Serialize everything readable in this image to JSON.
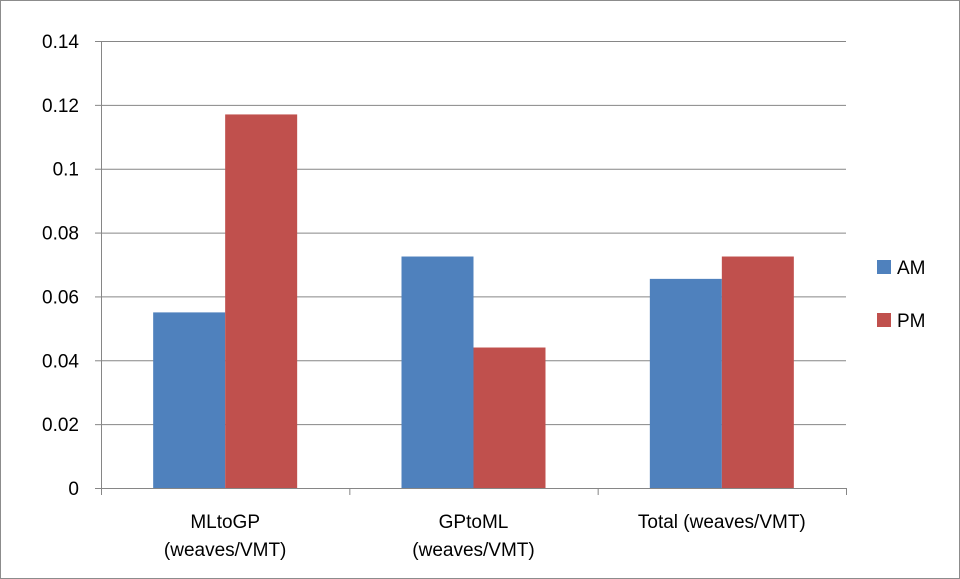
{
  "chart_data": {
    "type": "bar",
    "categories": [
      [
        "MLtoGP",
        "(weaves/VMT)"
      ],
      [
        "GPtoML",
        "(weaves/VMT)"
      ],
      [
        "Total (weaves/VMT)"
      ]
    ],
    "series": [
      {
        "name": "AM",
        "values": [
          0.055,
          0.0725,
          0.0655
        ],
        "color": "#4f81bd"
      },
      {
        "name": "PM",
        "values": [
          0.117,
          0.044,
          0.0725
        ],
        "color": "#c0504d"
      }
    ],
    "ylim": [
      0,
      0.14
    ],
    "yticks": [
      0,
      0.02,
      0.04,
      0.06,
      0.08,
      0.1,
      0.12,
      0.14
    ],
    "ytick_labels": [
      "0",
      "0.02",
      "0.04",
      "0.06",
      "0.08",
      "0.1",
      "0.12",
      "0.14"
    ],
    "title": "",
    "xlabel": "",
    "ylabel": "",
    "grid": true,
    "legend_position": "right",
    "gridline_color": "#868686",
    "axis_color": "#868686"
  }
}
